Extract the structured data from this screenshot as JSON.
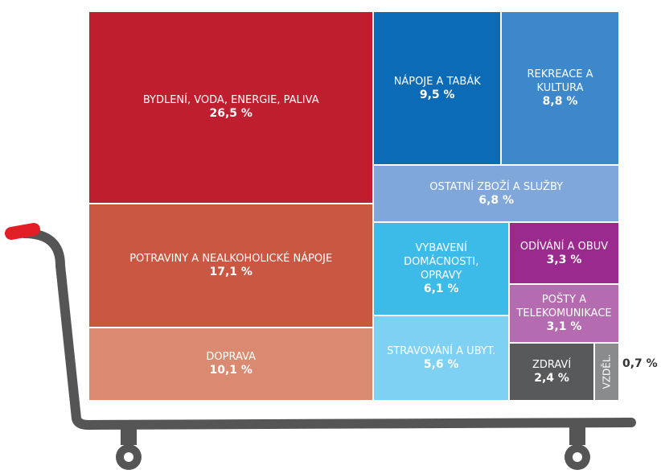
{
  "chart_data": {
    "type": "treemap",
    "categories": [
      "BYDLENÍ, VODA, ENERGIE, PALIVA",
      "POTRAVINY A NEALKOHOLICKÉ NÁPOJE",
      "DOPRAVA",
      "NÁPOJE A TABÁK",
      "REKREACE A KULTURA",
      "OSTATNÍ ZBOŽÍ A SLUŽBY",
      "VYBAVENÍ DOMÁCNOSTI, OPRAVY",
      "STRAVOVÁNÍ A UBYT.",
      "ODÍVÁNÍ A OBUV",
      "POŠTY A TELEKOMUNIKACE",
      "ZDRAVÍ",
      "VZDĚL."
    ],
    "values": [
      26.5,
      17.1,
      10.1,
      9.5,
      8.8,
      6.8,
      6.1,
      5.6,
      3.3,
      3.1,
      2.4,
      0.7
    ],
    "value_labels": [
      "26,5 %",
      "17,1 %",
      "10,1 %",
      "9,5 %",
      "8,8 %",
      "6,8 %",
      "6,1 %",
      "5,6 %",
      "3,3 %",
      "3,1 %",
      "2,4 %",
      "0,7 %"
    ],
    "colors": [
      "#be1e2d",
      "#c95742",
      "#da8a70",
      "#0b6bb7",
      "#3c88ca",
      "#7fa7d9",
      "#3dbbe8",
      "#7ed1f3",
      "#9b2a8f",
      "#b46bb0",
      "#58595b",
      "#8a8b8d"
    ]
  }
}
